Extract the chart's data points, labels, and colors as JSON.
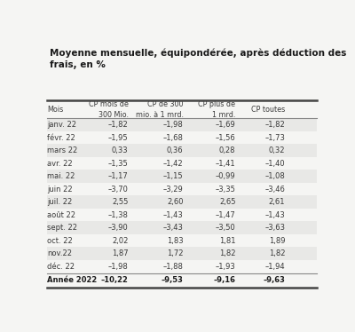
{
  "title": "Moyenne mensuelle, équipondérée, après déduction des\nfrais, en %",
  "col_headers": [
    "Mois",
    "CP mois de\n300 Mio.",
    "CP de 300\nmio. à 1 mrd.",
    "CP plus de\n1 mrd.",
    "CP toutes"
  ],
  "rows": [
    [
      "janv. 22",
      "–1,82",
      "–1,98",
      "–1,69",
      "–1,82"
    ],
    [
      "févr. 22",
      "–1,95",
      "–1,68",
      "–1,56",
      "–1,73"
    ],
    [
      "mars 22",
      "0,33",
      "0,36",
      "0,28",
      "0,32"
    ],
    [
      "avr. 22",
      "–1,35",
      "–1,42",
      "–1,41",
      "–1,40"
    ],
    [
      "mai. 22",
      "–1,17",
      "–1,15",
      "–0,99",
      "–1,08"
    ],
    [
      "juin 22",
      "–3,70",
      "–3,29",
      "–3,35",
      "–3,46"
    ],
    [
      "juil. 22",
      "2,55",
      "2,60",
      "2,65",
      "2,61"
    ],
    [
      "août 22",
      "–1,38",
      "–1,43",
      "–1,47",
      "–1,43"
    ],
    [
      "sept. 22",
      "–3,90",
      "–3,43",
      "–3,50",
      "–3,63"
    ],
    [
      "oct. 22",
      "2,02",
      "1,83",
      "1,81",
      "1,89"
    ],
    [
      "nov.22",
      "1,87",
      "1,72",
      "1,82",
      "1,82"
    ],
    [
      "déc. 22",
      "–1,98",
      "–1,88",
      "–1,93",
      "–1,94"
    ]
  ],
  "footer": [
    "Année 2022",
    "–10,22",
    "–9,53",
    "–9,16",
    "–9,63"
  ],
  "shaded_rows": [
    0,
    2,
    4,
    6,
    8,
    10
  ],
  "bg_color": "#f5f5f3",
  "shaded_color": "#e8e8e6",
  "text_color": "#3a3a3a",
  "bold_color": "#1a1a1a",
  "line_color_thick": "#444444",
  "line_color_thin": "#888888",
  "title_color": "#1a1a1a"
}
